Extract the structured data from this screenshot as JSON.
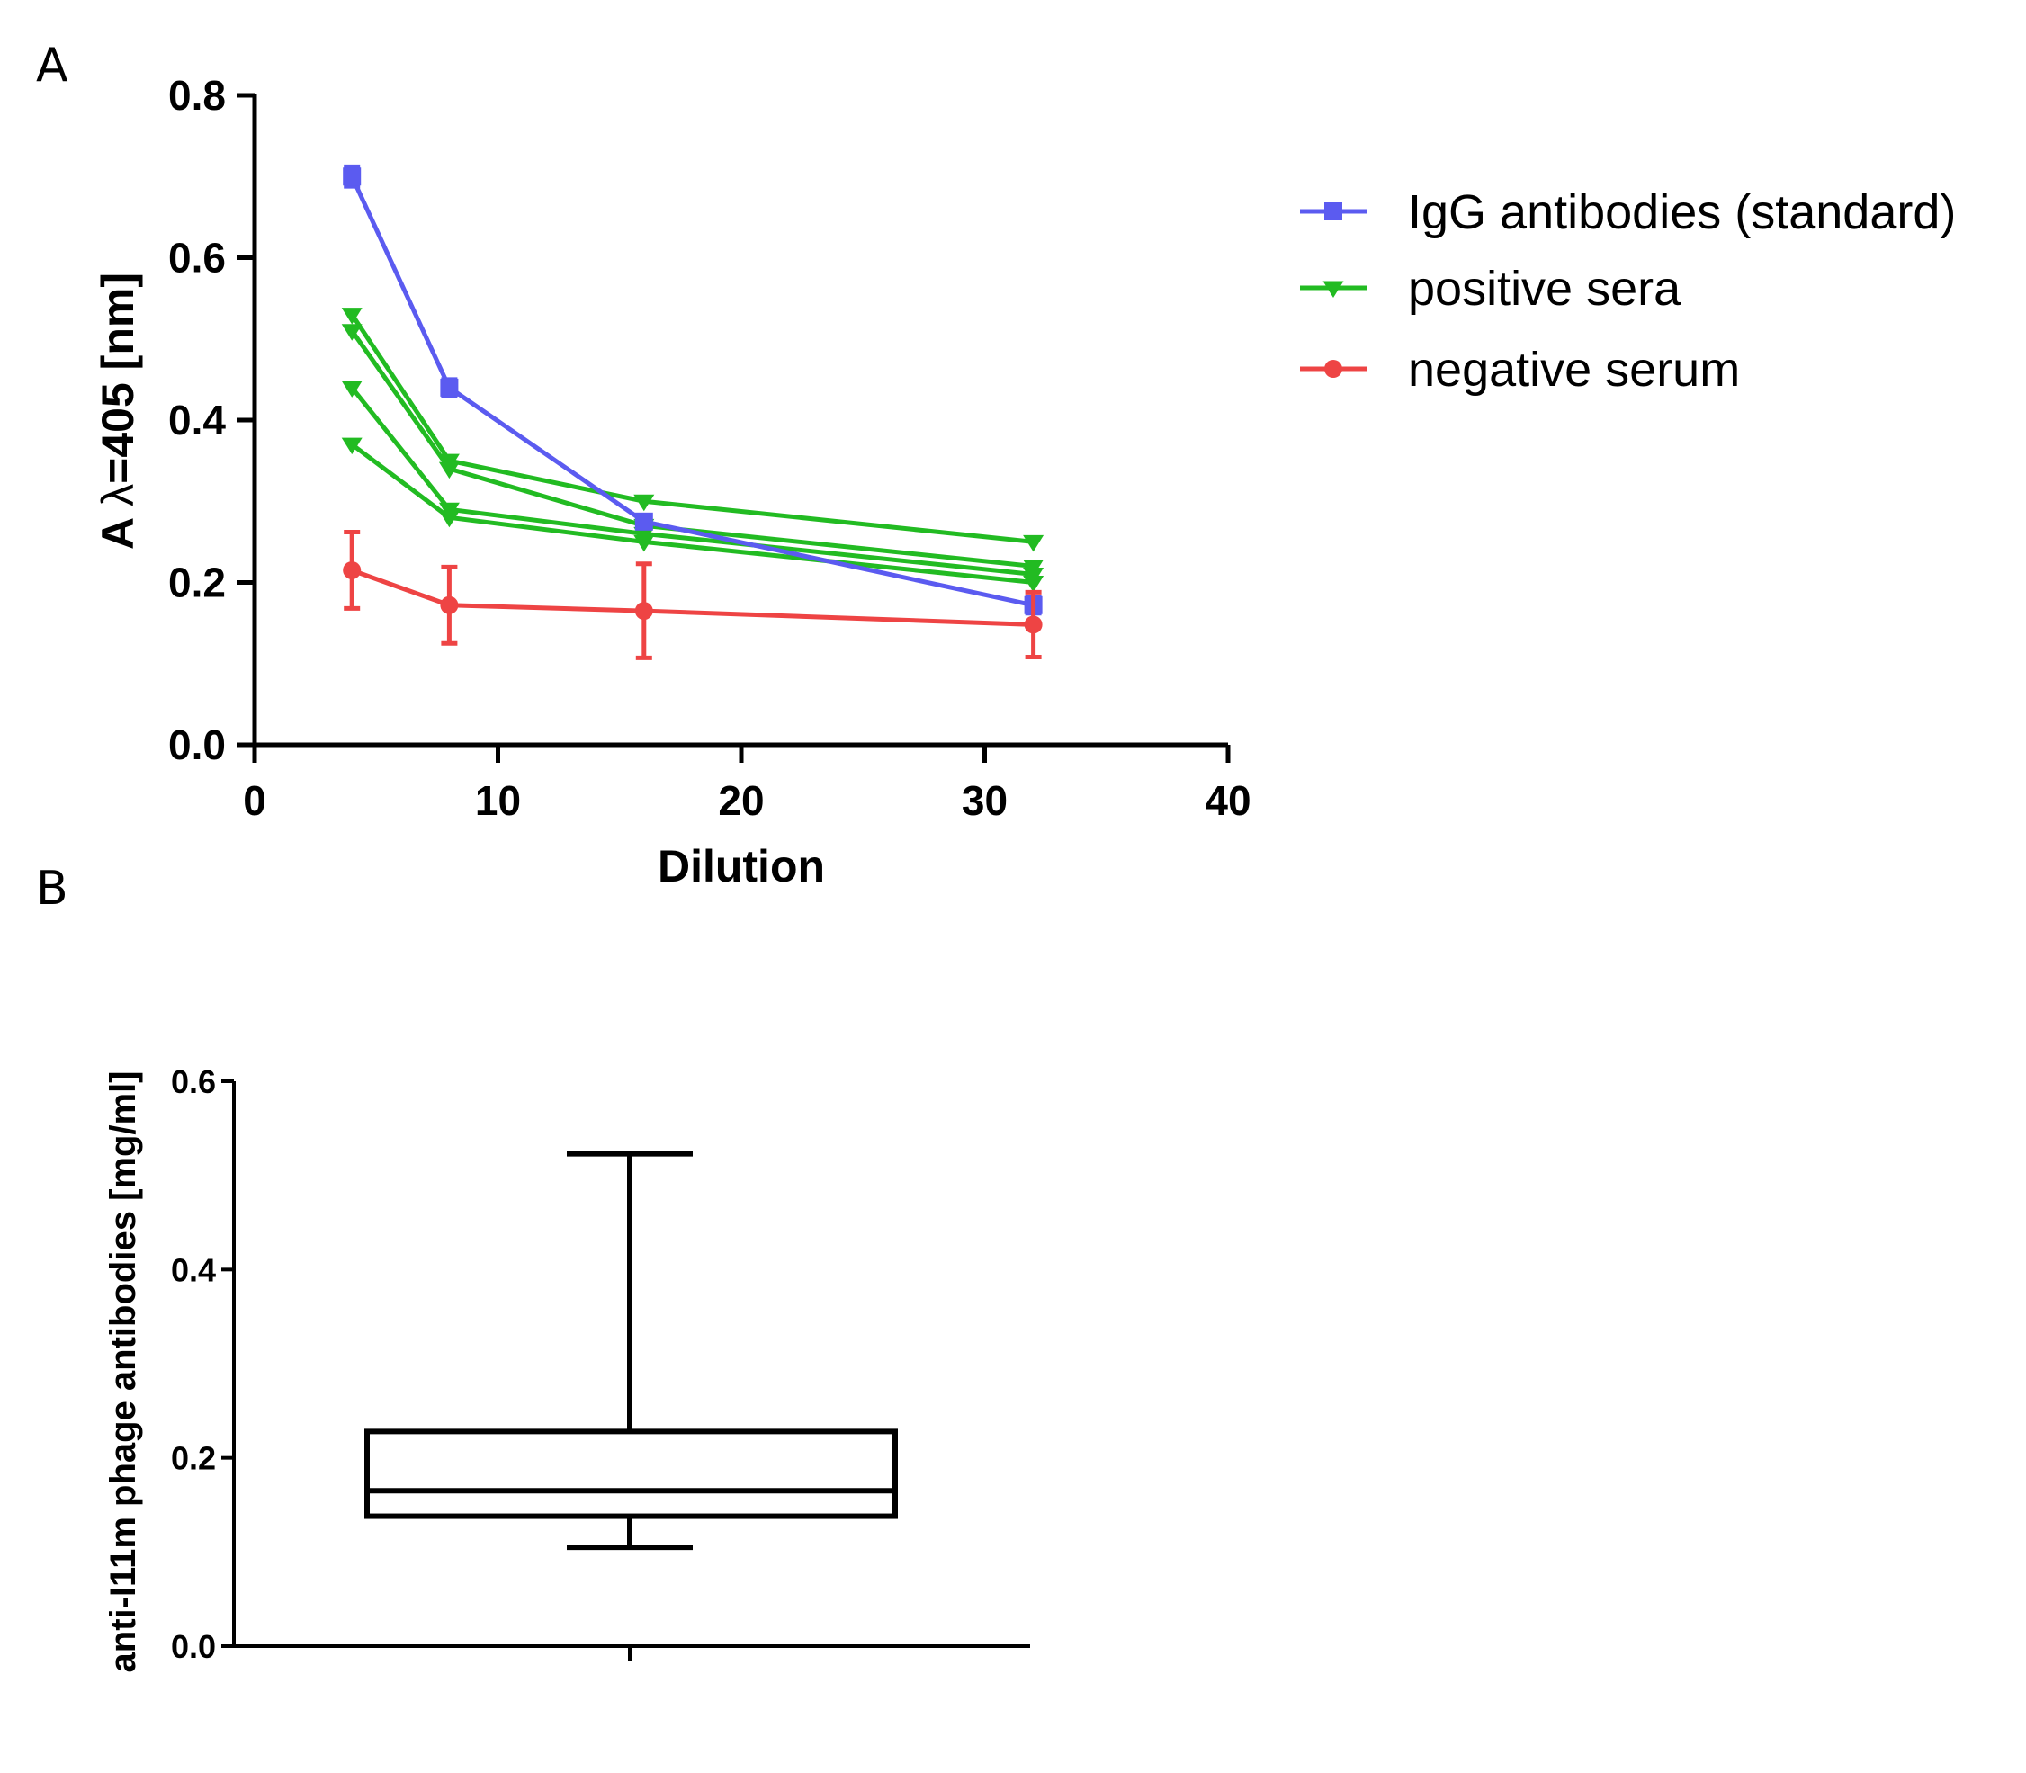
{
  "chart_data": [
    {
      "panel": "A",
      "type": "line",
      "xlabel": "Dilution",
      "ylabel_prefix": "A ",
      "ylabel_symbol": "λ",
      "ylabel_suffix": "=405 [nm]",
      "xlim": [
        0,
        40
      ],
      "ylim": [
        0.0,
        0.8
      ],
      "xticks": [
        0,
        10,
        20,
        30,
        40
      ],
      "xtick_labels": [
        "0",
        "10",
        "20",
        "30",
        "40"
      ],
      "yticks": [
        0.0,
        0.2,
        0.4,
        0.6,
        0.8
      ],
      "ytick_labels": [
        "0.0",
        "0.2",
        "0.4",
        "0.6",
        "0.8"
      ],
      "grid": false,
      "legend_position": "right",
      "series": [
        {
          "name": "IgG antibodies (standard)",
          "color": "#5b5bf0",
          "marker": "square",
          "x": [
            4,
            8,
            16,
            32
          ],
          "y": [
            0.7,
            0.44,
            0.275,
            0.172
          ],
          "errors": [
            0.012,
            0.01,
            0.008,
            0.01
          ]
        },
        {
          "name": "positive sera",
          "color": "#22bb22",
          "marker": "triangle-down",
          "x": [
            4,
            8,
            16,
            32
          ],
          "y": [
            0.53,
            0.35,
            0.3,
            0.25
          ],
          "show_in_legend": true
        },
        {
          "name": "positive sera",
          "color": "#22bb22",
          "marker": "triangle-down",
          "x": [
            4,
            8,
            16,
            32
          ],
          "y": [
            0.51,
            0.34,
            0.27,
            0.22
          ],
          "show_in_legend": false
        },
        {
          "name": "positive sera",
          "color": "#22bb22",
          "marker": "triangle-down",
          "x": [
            4,
            8,
            16,
            32
          ],
          "y": [
            0.44,
            0.29,
            0.26,
            0.21
          ],
          "show_in_legend": false
        },
        {
          "name": "positive sera",
          "color": "#22bb22",
          "marker": "triangle-down",
          "x": [
            4,
            8,
            16,
            32
          ],
          "y": [
            0.37,
            0.28,
            0.25,
            0.2
          ],
          "show_in_legend": false
        },
        {
          "name": "negative serum",
          "color": "#ee4444",
          "marker": "circle",
          "x": [
            4,
            8,
            16,
            32
          ],
          "y": [
            0.215,
            0.172,
            0.165,
            0.148
          ],
          "errors": [
            0.047,
            0.047,
            0.058,
            0.04
          ]
        }
      ],
      "legend": [
        {
          "label": "IgG antibodies (standard)",
          "color": "#5b5bf0",
          "marker": "square"
        },
        {
          "label": "positive sera",
          "color": "#22bb22",
          "marker": "triangle-down"
        },
        {
          "label": "negative serum",
          "color": "#ee4444",
          "marker": "circle"
        }
      ]
    },
    {
      "panel": "B",
      "type": "box",
      "ylabel": "anti-I11m phage antibodies [mg/ml]",
      "ylim": [
        0.0,
        0.6
      ],
      "yticks": [
        0.0,
        0.2,
        0.4,
        0.6
      ],
      "ytick_labels": [
        "0.0",
        "0.2",
        "0.4",
        "0.6"
      ],
      "grid": false,
      "box": {
        "min": 0.105,
        "q1": 0.138,
        "median": 0.165,
        "q3": 0.228,
        "max": 0.523
      }
    }
  ]
}
